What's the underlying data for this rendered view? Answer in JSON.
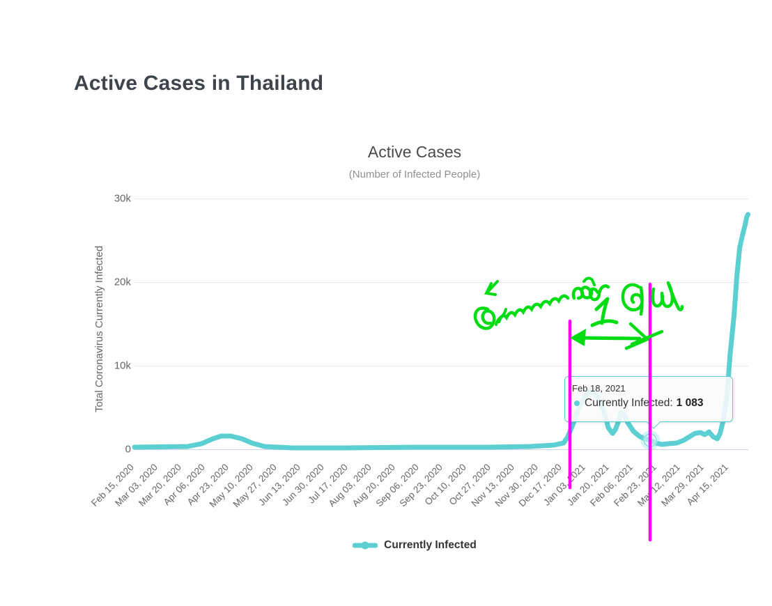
{
  "page": {
    "title": "Active Cases in Thailand"
  },
  "colors": {
    "series": "#5CCFD2",
    "annotation_magenta": "#FB00F5",
    "annotation_green": "#00DC14",
    "grid": "#e6e6e6",
    "axis_line": "#ccd6eb"
  },
  "chart": {
    "y_ticks": [
      "30k",
      "20k",
      "10k",
      "0"
    ],
    "y_axis_title": "Total Coronavirus Currently Infected"
  },
  "tooltip": {
    "date": "Feb 18, 2021",
    "series_label": "Currently Infected:",
    "value": "1 083"
  },
  "legend": {
    "label": "Currently Infected"
  },
  "annotations": {
    "description": "hand-drawn markup: two vertical magenta lines, green double-headed arrow between them, green Thai cursive handwriting",
    "handwritten_text_right": "1 คน",
    "magenta_color": "#FB00F5",
    "green_color": "#00DC14"
  },
  "chart_data": {
    "type": "line",
    "title": "Active Cases",
    "subtitle": "(Number of Infected People)",
    "xlabel": "",
    "ylabel": "Total Coronavirus Currently Infected",
    "ylim": [
      0,
      30000
    ],
    "ytick_values": [
      0,
      10000,
      20000,
      30000
    ],
    "grid": true,
    "legend_position": "bottom",
    "tick_interval_days": 17,
    "categories": [
      "Feb 15, 2020",
      "Mar 03, 2020",
      "Mar 20, 2020",
      "Apr 06, 2020",
      "Apr 23, 2020",
      "May 10, 2020",
      "May 27, 2020",
      "Jun 13, 2020",
      "Jun 30, 2020",
      "Jul 17, 2020",
      "Aug 03, 2020",
      "Aug 20, 2020",
      "Sep 06, 2020",
      "Sep 23, 2020",
      "Oct 10, 2020",
      "Oct 27, 2020",
      "Nov 13, 2020",
      "Nov 30, 2020",
      "Dec 17, 2020",
      "Jan 03, 2021",
      "Jan 20, 2021",
      "Feb 06, 2021",
      "Feb 23, 2021",
      "Mar 12, 2021",
      "Mar 29, 2021",
      "Apr 15, 2021"
    ],
    "series": [
      {
        "name": "Currently Infected",
        "color": "#5CCFD2",
        "values": [
          25,
          35,
          310,
          1400,
          1000,
          200,
          80,
          65,
          60,
          75,
          110,
          110,
          80,
          90,
          95,
          120,
          120,
          140,
          650,
          6300,
          2400,
          1900,
          750,
          840,
          1850,
          12800
        ]
      }
    ],
    "shape_points": [
      [
        0,
        250
      ],
      [
        38,
        330
      ],
      [
        48,
        670
      ],
      [
        56,
        1250
      ],
      [
        62,
        1580
      ],
      [
        69,
        1580
      ],
      [
        77,
        1250
      ],
      [
        84,
        750
      ],
      [
        93,
        330
      ],
      [
        113,
        170
      ],
      [
        153,
        170
      ],
      [
        203,
        250
      ],
      [
        253,
        250
      ],
      [
        283,
        330
      ],
      [
        300,
        500
      ],
      [
        307,
        750
      ],
      [
        310,
        1500
      ],
      [
        314,
        3100
      ],
      [
        318,
        5000
      ],
      [
        322,
        6250
      ],
      [
        326,
        7000
      ],
      [
        329,
        6800
      ],
      [
        333,
        5800
      ],
      [
        337,
        3900
      ],
      [
        339,
        2580
      ],
      [
        342,
        1900
      ],
      [
        344,
        2330
      ],
      [
        347,
        3670
      ],
      [
        348,
        4400
      ],
      [
        350,
        4160
      ],
      [
        353,
        3170
      ],
      [
        357,
        2170
      ],
      [
        361,
        1580
      ],
      [
        365,
        1250
      ],
      [
        369,
        1083
      ],
      [
        373,
        750
      ],
      [
        377,
        580
      ],
      [
        382,
        670
      ],
      [
        388,
        750
      ],
      [
        393,
        1080
      ],
      [
        397,
        1500
      ],
      [
        401,
        1900
      ],
      [
        405,
        2000
      ],
      [
        408,
        1750
      ],
      [
        411,
        2080
      ],
      [
        414,
        1500
      ],
      [
        417,
        1250
      ],
      [
        419,
        1900
      ],
      [
        421,
        3250
      ],
      [
        424,
        6400
      ],
      [
        426,
        11100
      ],
      [
        429,
        16100
      ],
      [
        431,
        20750
      ],
      [
        433,
        24100
      ],
      [
        435,
        25600
      ],
      [
        436,
        26250
      ],
      [
        437,
        26900
      ],
      [
        438,
        27750
      ],
      [
        439,
        28100
      ]
    ],
    "highlight": {
      "date": "Feb 18, 2021",
      "day": 369,
      "value": 1083,
      "value_display": "1 083"
    }
  }
}
